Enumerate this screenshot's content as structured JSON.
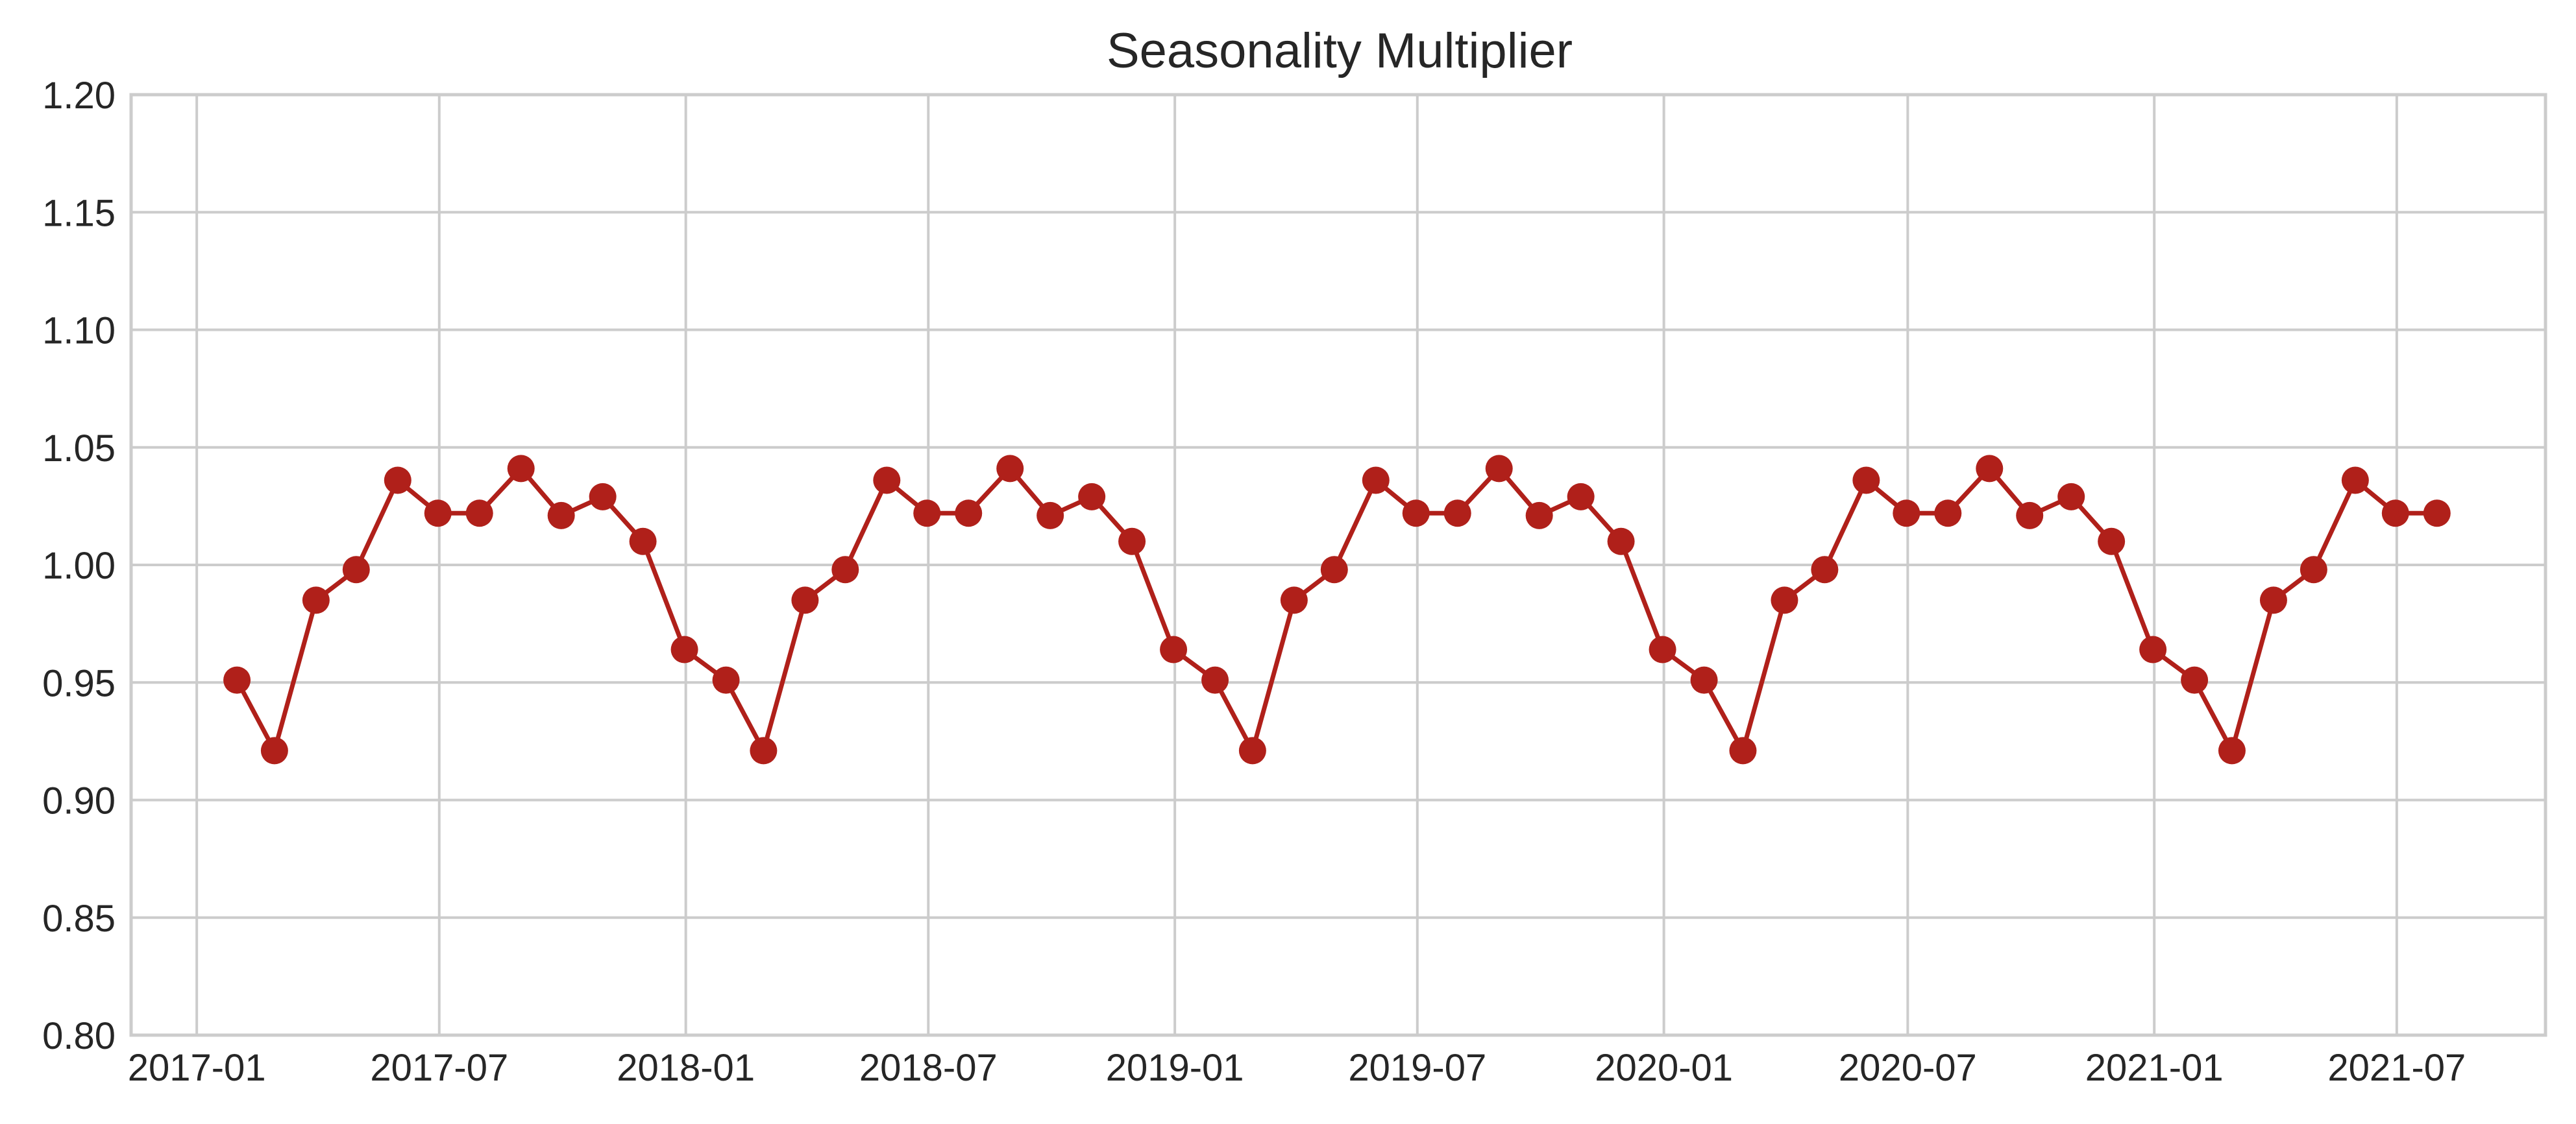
{
  "chart_data": {
    "type": "line",
    "title": "Seasonality Multiplier",
    "xlabel": "",
    "ylabel": "",
    "ylim": [
      0.8,
      1.2
    ],
    "xlim": [
      "2016-11-13",
      "2021-10-20"
    ],
    "grid": true,
    "legend": "none",
    "y_ticks": [
      "0.80",
      "0.85",
      "0.90",
      "0.95",
      "1.00",
      "1.05",
      "1.10",
      "1.15",
      "1.20"
    ],
    "x_ticks": [
      {
        "date": "2017-01-01",
        "label": "2017-01"
      },
      {
        "date": "2017-07-01",
        "label": "2017-07"
      },
      {
        "date": "2018-01-01",
        "label": "2018-01"
      },
      {
        "date": "2018-07-01",
        "label": "2018-07"
      },
      {
        "date": "2019-01-01",
        "label": "2019-01"
      },
      {
        "date": "2019-07-01",
        "label": "2019-07"
      },
      {
        "date": "2020-01-01",
        "label": "2020-01"
      },
      {
        "date": "2020-07-01",
        "label": "2020-07"
      },
      {
        "date": "2021-01-01",
        "label": "2021-01"
      },
      {
        "date": "2021-07-01",
        "label": "2021-07"
      }
    ],
    "series": [
      {
        "color": "#b0201a",
        "x": [
          "2017-01-31",
          "2017-02-28",
          "2017-03-31",
          "2017-04-30",
          "2017-05-31",
          "2017-06-30",
          "2017-07-31",
          "2017-08-31",
          "2017-09-30",
          "2017-10-31",
          "2017-11-30",
          "2017-12-31",
          "2018-01-31",
          "2018-02-28",
          "2018-03-31",
          "2018-04-30",
          "2018-05-31",
          "2018-06-30",
          "2018-07-31",
          "2018-08-31",
          "2018-09-30",
          "2018-10-31",
          "2018-11-30",
          "2018-12-31",
          "2019-01-31",
          "2019-02-28",
          "2019-03-31",
          "2019-04-30",
          "2019-05-31",
          "2019-06-30",
          "2019-07-31",
          "2019-08-31",
          "2019-09-30",
          "2019-10-31",
          "2019-11-30",
          "2019-12-31",
          "2020-01-31",
          "2020-02-29",
          "2020-03-31",
          "2020-04-30",
          "2020-05-31",
          "2020-06-30",
          "2020-07-31",
          "2020-08-31",
          "2020-09-30",
          "2020-10-31",
          "2020-11-30",
          "2020-12-31",
          "2021-01-31",
          "2021-02-28",
          "2021-03-31",
          "2021-04-30",
          "2021-05-31",
          "2021-06-30",
          "2021-07-31"
        ],
        "y": [
          0.951,
          0.921,
          0.985,
          0.998,
          1.036,
          1.022,
          1.022,
          1.041,
          1.021,
          1.029,
          1.01,
          0.964,
          0.951,
          0.921,
          0.985,
          0.998,
          1.036,
          1.022,
          1.022,
          1.041,
          1.021,
          1.029,
          1.01,
          0.964,
          0.951,
          0.921,
          0.985,
          0.998,
          1.036,
          1.022,
          1.022,
          1.041,
          1.021,
          1.029,
          1.01,
          0.964,
          0.951,
          0.921,
          0.985,
          0.998,
          1.036,
          1.022,
          1.022,
          1.041,
          1.021,
          1.029,
          1.01,
          0.964,
          0.951,
          0.921,
          0.985,
          0.998,
          1.036,
          1.022,
          1.022
        ]
      }
    ]
  }
}
